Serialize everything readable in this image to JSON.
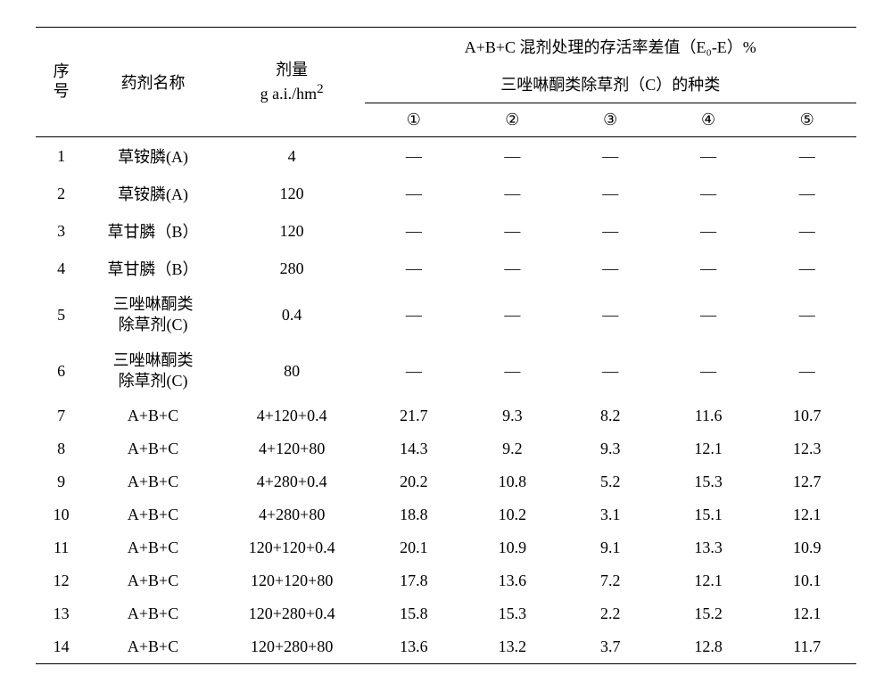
{
  "headers": {
    "seq_line1": "序",
    "seq_line2": "号",
    "agent_name": "药剂名称",
    "dose_line1": "剂量",
    "dose_line2": "g a.i./hm",
    "dose_sup": "2",
    "main_top": "A+B+C 混剂处理的存活率差值（E₀-E）%",
    "main_sub": "三唑啉酮类除草剂（C）的种类",
    "col1": "①",
    "col2": "②",
    "col3": "③",
    "col4": "④",
    "col5": "⑤"
  },
  "rows": [
    {
      "seq": "1",
      "name": "草铵膦(A)",
      "dose": "4",
      "v": [
        "—",
        "—",
        "—",
        "—",
        "—"
      ]
    },
    {
      "seq": "2",
      "name": "草铵膦(A)",
      "dose": "120",
      "v": [
        "—",
        "—",
        "—",
        "—",
        "—"
      ]
    },
    {
      "seq": "3",
      "name": "草甘膦（B）",
      "dose": "120",
      "v": [
        "—",
        "—",
        "—",
        "—",
        "—"
      ]
    },
    {
      "seq": "4",
      "name": "草甘膦（B）",
      "dose": "280",
      "v": [
        "—",
        "—",
        "—",
        "—",
        "—"
      ]
    },
    {
      "seq": "5",
      "name": "三唑啉酮类除草剂(C)",
      "dose": "0.4",
      "v": [
        "—",
        "—",
        "—",
        "—",
        "—"
      ],
      "wrap": true
    },
    {
      "seq": "6",
      "name": "三唑啉酮类除草剂(C)",
      "dose": "80",
      "v": [
        "—",
        "—",
        "—",
        "—",
        "—"
      ],
      "wrap": true
    },
    {
      "seq": "7",
      "name": "A+B+C",
      "dose": "4+120+0.4",
      "v": [
        "21.7",
        "9.3",
        "8.2",
        "11.6",
        "10.7"
      ]
    },
    {
      "seq": "8",
      "name": "A+B+C",
      "dose": "4+120+80",
      "v": [
        "14.3",
        "9.2",
        "9.3",
        "12.1",
        "12.3"
      ]
    },
    {
      "seq": "9",
      "name": "A+B+C",
      "dose": "4+280+0.4",
      "v": [
        "20.2",
        "10.8",
        "5.2",
        "15.3",
        "12.7"
      ]
    },
    {
      "seq": "10",
      "name": "A+B+C",
      "dose": "4+280+80",
      "v": [
        "18.8",
        "10.2",
        "3.1",
        "15.1",
        "12.1"
      ]
    },
    {
      "seq": "11",
      "name": "A+B+C",
      "dose": "120+120+0.4",
      "v": [
        "20.1",
        "10.9",
        "9.1",
        "13.3",
        "10.9"
      ]
    },
    {
      "seq": "12",
      "name": "A+B+C",
      "dose": "120+120+80",
      "v": [
        "17.8",
        "13.6",
        "7.2",
        "12.1",
        "10.1"
      ]
    },
    {
      "seq": "13",
      "name": "A+B+C",
      "dose": "120+280+0.4",
      "v": [
        "15.8",
        "15.3",
        "2.2",
        "15.2",
        "12.1"
      ]
    },
    {
      "seq": "14",
      "name": "A+B+C",
      "dose": "120+280+80",
      "v": [
        "13.6",
        "13.2",
        "3.7",
        "12.8",
        "11.7"
      ]
    }
  ]
}
